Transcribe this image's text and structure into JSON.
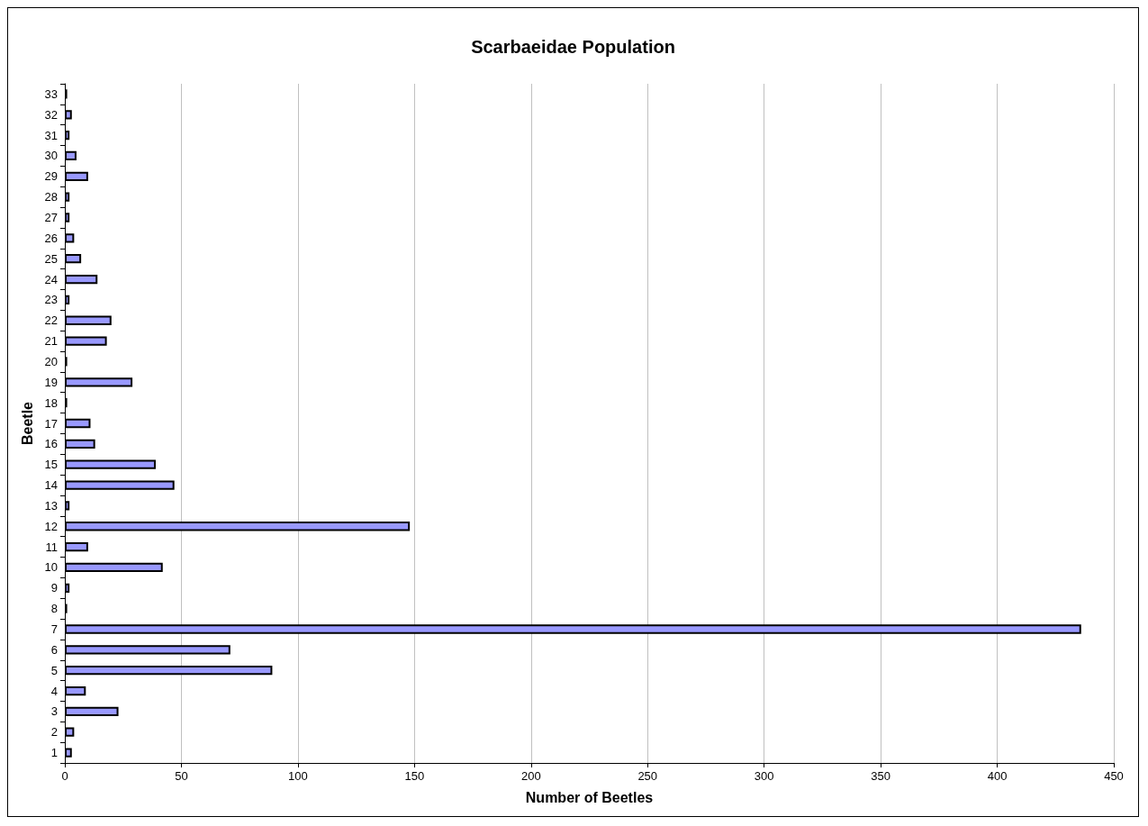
{
  "chart_data": {
    "type": "bar",
    "orientation": "horizontal",
    "title": "Scarbaeidae Population",
    "xlabel": "Number of Beetles",
    "ylabel": "Beetle",
    "categories": [
      "33",
      "32",
      "31",
      "30",
      "29",
      "28",
      "27",
      "26",
      "25",
      "24",
      "23",
      "22",
      "21",
      "20",
      "19",
      "18",
      "17",
      "16",
      "15",
      "14",
      "13",
      "12",
      "11",
      "10",
      "9",
      "8",
      "7",
      "6",
      "5",
      "4",
      "3",
      "2",
      "1"
    ],
    "values": [
      1,
      3,
      2,
      5,
      10,
      2,
      2,
      4,
      7,
      14,
      2,
      20,
      18,
      1,
      29,
      1,
      11,
      13,
      39,
      47,
      2,
      148,
      10,
      42,
      2,
      1,
      436,
      71,
      89,
      9,
      23,
      4,
      3
    ],
    "color": "#9999ff",
    "xlim": [
      0,
      450
    ],
    "xticks": [
      0,
      50,
      100,
      150,
      200,
      250,
      300,
      350,
      400,
      450
    ],
    "grid": "x"
  }
}
